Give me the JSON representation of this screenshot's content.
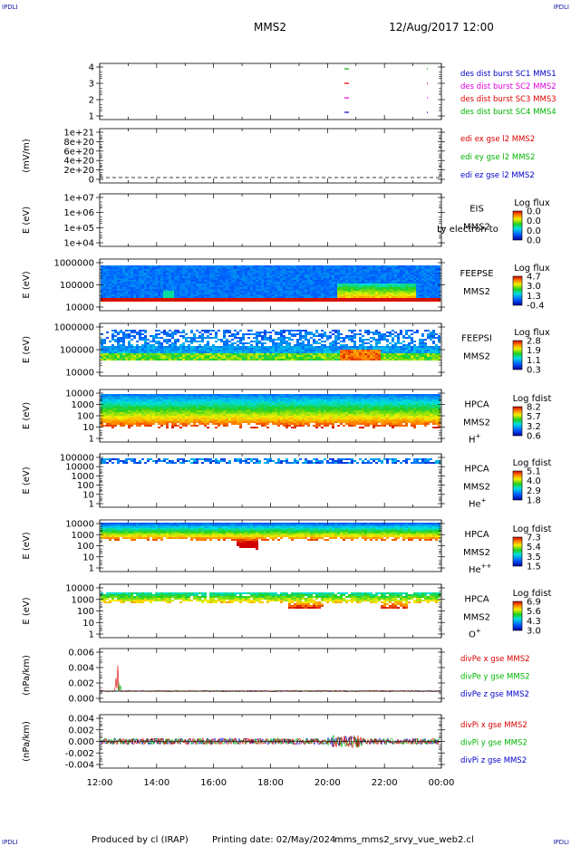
{
  "header": {
    "left_corner": "IPDLI",
    "right_corner": "IPDLI",
    "spacecraft": "MMS2",
    "date_time": "12/Aug/2017 12:00"
  },
  "footer": {
    "left_corner": "IPDLI",
    "right_corner": "IPDLI",
    "produced_by": "Produced by cl (IRAP)",
    "printing_date": "Printing date: 02/May/2024",
    "script_name": "mms_mms2_srvy_vue_web2.cl"
  },
  "time_axis": {
    "tick_labels": [
      "12:00",
      "14:00",
      "16:00",
      "18:00",
      "20:00",
      "22:00",
      "00:00"
    ]
  },
  "colors": {
    "blue": "#0000c8",
    "red": "#dc0000",
    "green": "#00b400",
    "magenta": "#e000e0"
  },
  "chart_data": [
    {
      "id": "burst",
      "type": "scatter",
      "yticks": [
        "4",
        "3",
        "2",
        "1"
      ],
      "legend": [
        {
          "label": "des dist burst SC1 MMS1",
          "color": "#0000c8"
        },
        {
          "label": "des dist burst SC2 MMS2",
          "color": "#e000e0"
        },
        {
          "label": "des dist burst SC3 MMS3",
          "color": "#dc0000"
        },
        {
          "label": "des dist burst SC4 MMS4",
          "color": "#00b400"
        }
      ]
    },
    {
      "id": "edi",
      "type": "line",
      "ylabel": "(mV/m)",
      "yticks": [
        "1e+21",
        "8e+20",
        "6e+20",
        "4e+20",
        "2e+20",
        "0"
      ],
      "legend": [
        {
          "label": "edi ex gse l2 MMS2",
          "color": "#dc0000"
        },
        {
          "label": "edi ey gse l2 MMS2",
          "color": "#00b400"
        },
        {
          "label": "edi ez gse l2 MMS2",
          "color": "#0000c8"
        }
      ]
    },
    {
      "id": "eis",
      "type": "heatmap",
      "ylabel": "E (eV)",
      "yticks": [
        "1e+07",
        "1e+06",
        "1e+05",
        "1e+04"
      ],
      "instrument": "EIS",
      "overlay_text": "Ly electron to",
      "sc": "MMS2",
      "colorbar_title": "Log flux",
      "colorbar_ticks": [
        "0.0",
        "0.0",
        "0.0",
        "0.0"
      ]
    },
    {
      "id": "feepse",
      "type": "heatmap",
      "ylabel": "E (eV)",
      "yticks": [
        "1000000",
        "100000",
        "10000"
      ],
      "instrument": "FEEPSE",
      "sc": "MMS2",
      "colorbar_title": "Log flux",
      "colorbar_ticks": [
        "4.7",
        "3.0",
        "1.3",
        "-0.4"
      ]
    },
    {
      "id": "feepsi",
      "type": "heatmap",
      "ylabel": "E (eV)",
      "yticks": [
        "1000000",
        "100000",
        "10000"
      ],
      "instrument": "FEEPSI",
      "sc": "MMS2",
      "colorbar_title": "Log flux",
      "colorbar_ticks": [
        "2.8",
        "1.9",
        "1.1",
        "0.3"
      ]
    },
    {
      "id": "hpca_h",
      "type": "heatmap",
      "ylabel": "E (eV)",
      "yticks": [
        "10000",
        "1000",
        "100",
        "10",
        "1"
      ],
      "instrument": "HPCA",
      "sc": "MMS2",
      "species": "H",
      "species_sup": "+",
      "colorbar_title": "Log fdist",
      "colorbar_ticks": [
        "8.2",
        "5.7",
        "3.2",
        "0.6"
      ]
    },
    {
      "id": "hpca_he",
      "type": "heatmap",
      "ylabel": "E (eV)",
      "yticks": [
        "100000",
        "10000",
        "1000",
        "100",
        "10",
        "1"
      ],
      "instrument": "HPCA",
      "sc": "MMS2",
      "species": "He",
      "species_sup": "+",
      "colorbar_title": "Log fdist",
      "colorbar_ticks": [
        "5.1",
        "4.0",
        "2.9",
        "1.8"
      ]
    },
    {
      "id": "hpca_he2",
      "type": "heatmap",
      "ylabel": "E (eV)",
      "yticks": [
        "10000",
        "1000",
        "100",
        "10",
        "1"
      ],
      "instrument": "HPCA",
      "sc": "MMS2",
      "species": "He",
      "species_sup": "++",
      "colorbar_title": "Log fdist",
      "colorbar_ticks": [
        "7.3",
        "5.4",
        "3.5",
        "1.5"
      ]
    },
    {
      "id": "hpca_o",
      "type": "heatmap",
      "ylabel": "E (eV)",
      "yticks": [
        "10000",
        "1000",
        "100",
        "10",
        "1"
      ],
      "instrument": "HPCA",
      "sc": "MMS2",
      "species": "O",
      "species_sup": "+",
      "colorbar_title": "Log fdist",
      "colorbar_ticks": [
        "6.9",
        "5.6",
        "4.3",
        "3.0"
      ]
    },
    {
      "id": "divpe",
      "type": "line",
      "ylabel": "(nPa/km)",
      "yticks": [
        "0.006",
        "0.004",
        "0.002",
        "0.000"
      ],
      "legend": [
        {
          "label": "divPe x gse MMS2",
          "color": "#dc0000"
        },
        {
          "label": "divPe y gse MMS2",
          "color": "#00b400"
        },
        {
          "label": "divPe z gse MMS2",
          "color": "#0000c8"
        }
      ]
    },
    {
      "id": "divpi",
      "type": "line",
      "ylabel": "(nPa/km)",
      "yticks": [
        "0.004",
        "0.002",
        "0.000",
        "-0.002",
        "-0.004"
      ],
      "legend": [
        {
          "label": "divPi x gse MMS2",
          "color": "#dc0000"
        },
        {
          "label": "divPi y gse MMS2",
          "color": "#00b400"
        },
        {
          "label": "divPi z gse MMS2",
          "color": "#0000c8"
        }
      ]
    }
  ]
}
